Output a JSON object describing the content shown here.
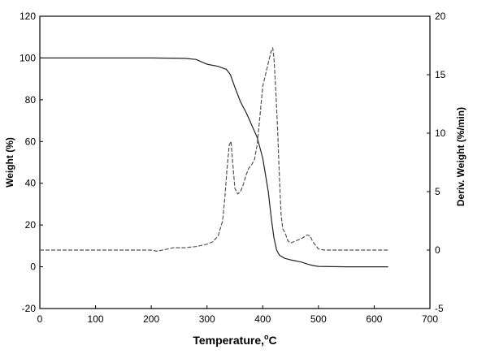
{
  "chart_data": {
    "type": "line",
    "title": "",
    "xlabel": {
      "prefix": "Temperature,",
      "sup": "o",
      "suffix": "C"
    },
    "ylabel": "Weight (%)",
    "y2label": "Deriv. Weight (%/min)",
    "xlim": [
      0,
      700
    ],
    "ylim": [
      -20,
      120
    ],
    "y2lim": [
      -5,
      20
    ],
    "x_ticks": [
      0,
      100,
      200,
      300,
      400,
      500,
      600,
      700
    ],
    "y_ticks": [
      -20,
      0,
      20,
      40,
      60,
      80,
      100,
      120
    ],
    "y2_ticks": [
      -5,
      0,
      5,
      10,
      15,
      20
    ],
    "grid": false,
    "legend": "none",
    "series": [
      {
        "axis": "left",
        "style": "solid",
        "color": "#222222",
        "points": [
          [
            0,
            100
          ],
          [
            100,
            100
          ],
          [
            200,
            100
          ],
          [
            260,
            99.8
          ],
          [
            280,
            99.3
          ],
          [
            300,
            97
          ],
          [
            320,
            96
          ],
          [
            335,
            94.5
          ],
          [
            342,
            92
          ],
          [
            350,
            86
          ],
          [
            360,
            79
          ],
          [
            370,
            74
          ],
          [
            380,
            68
          ],
          [
            390,
            62
          ],
          [
            400,
            52
          ],
          [
            405,
            44
          ],
          [
            410,
            36
          ],
          [
            415,
            24
          ],
          [
            420,
            14
          ],
          [
            425,
            8
          ],
          [
            430,
            5.5
          ],
          [
            440,
            4
          ],
          [
            450,
            3.3
          ],
          [
            460,
            2.8
          ],
          [
            470,
            2.2
          ],
          [
            480,
            1.3
          ],
          [
            490,
            0.6
          ],
          [
            500,
            0.2
          ],
          [
            550,
            0
          ],
          [
            625,
            0
          ]
        ]
      },
      {
        "axis": "right",
        "style": "dashed",
        "color": "#555555",
        "points": [
          [
            0,
            0
          ],
          [
            100,
            0
          ],
          [
            200,
            0
          ],
          [
            210,
            -0.1
          ],
          [
            220,
            0
          ],
          [
            240,
            0.2
          ],
          [
            260,
            0.2
          ],
          [
            280,
            0.3
          ],
          [
            300,
            0.5
          ],
          [
            310,
            0.7
          ],
          [
            320,
            1.2
          ],
          [
            328,
            2.5
          ],
          [
            332,
            4.5
          ],
          [
            336,
            7
          ],
          [
            340,
            9
          ],
          [
            343,
            9.3
          ],
          [
            346,
            7.5
          ],
          [
            350,
            5.3
          ],
          [
            355,
            4.8
          ],
          [
            360,
            5
          ],
          [
            365,
            5.6
          ],
          [
            370,
            6.4
          ],
          [
            375,
            7
          ],
          [
            380,
            7.3
          ],
          [
            385,
            7.7
          ],
          [
            390,
            9
          ],
          [
            395,
            11.5
          ],
          [
            400,
            14
          ],
          [
            405,
            15
          ],
          [
            410,
            16
          ],
          [
            415,
            17
          ],
          [
            418,
            17.3
          ],
          [
            420,
            16.5
          ],
          [
            423,
            14
          ],
          [
            427,
            10
          ],
          [
            430,
            6
          ],
          [
            433,
            3
          ],
          [
            436,
            1.8
          ],
          [
            440,
            1.5
          ],
          [
            445,
            0.8
          ],
          [
            450,
            0.6
          ],
          [
            460,
            0.8
          ],
          [
            470,
            1
          ],
          [
            480,
            1.3
          ],
          [
            485,
            1.2
          ],
          [
            490,
            0.7
          ],
          [
            500,
            0.1
          ],
          [
            510,
            0
          ],
          [
            625,
            0
          ]
        ]
      }
    ]
  }
}
